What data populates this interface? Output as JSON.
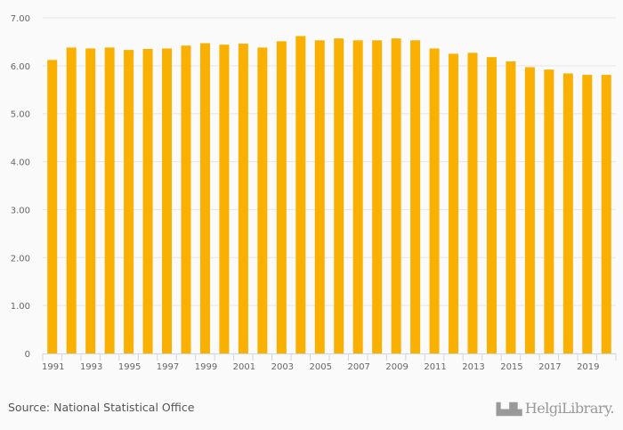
{
  "chart_data": {
    "type": "bar",
    "title": "",
    "xlabel": "",
    "ylabel": "",
    "ylim": [
      0,
      7
    ],
    "grid": true,
    "yticks": [
      "0",
      "1.00",
      "2.00",
      "3.00",
      "4.00",
      "5.00",
      "6.00",
      "7.00"
    ],
    "categories": [
      "1991",
      "1992",
      "1993",
      "1994",
      "1995",
      "1996",
      "1997",
      "1998",
      "1999",
      "2000",
      "2001",
      "2002",
      "2003",
      "2004",
      "2005",
      "2006",
      "2007",
      "2008",
      "2009",
      "2010",
      "2011",
      "2012",
      "2013",
      "2014",
      "2015",
      "2016",
      "2017",
      "2018",
      "2019",
      "2020"
    ],
    "xtick_labels": [
      "1991",
      "1993",
      "1995",
      "1997",
      "1999",
      "2001",
      "2003",
      "2005",
      "2007",
      "2009",
      "2011",
      "2013",
      "2015",
      "2017",
      "2019"
    ],
    "values": [
      6.12,
      6.38,
      6.36,
      6.38,
      6.33,
      6.35,
      6.36,
      6.42,
      6.47,
      6.44,
      6.46,
      6.38,
      6.51,
      6.62,
      6.53,
      6.57,
      6.53,
      6.53,
      6.57,
      6.53,
      6.36,
      6.25,
      6.27,
      6.18,
      6.09,
      5.97,
      5.92,
      5.84,
      5.81,
      5.81
    ],
    "bar_color": "#f9b000"
  },
  "footer": {
    "source": "Source: National Statistical Office",
    "logo": "HelgiLibrary"
  }
}
